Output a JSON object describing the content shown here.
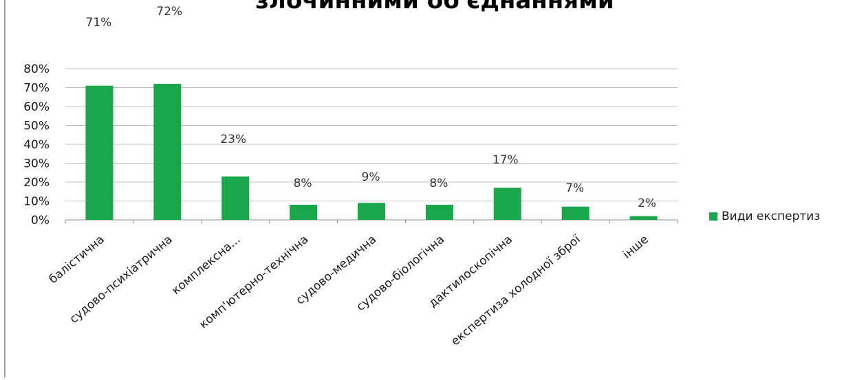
{
  "chart_data": {
    "type": "bar",
    "title": "злочинними об'єднаннями",
    "categories": [
      "балістична",
      "судово-психіатрична",
      "комплексна...",
      "комп'ютерно-технічна",
      "судово-медична",
      "судово-біологічна",
      "дактилоскопічна",
      "експертиза холодної зброї",
      "інше"
    ],
    "series": [
      {
        "name": "Види експертиз",
        "values": [
          71,
          72,
          23,
          8,
          9,
          8,
          17,
          7,
          2
        ],
        "color": "#1aa64a"
      }
    ],
    "data_labels": [
      "71%",
      "72%",
      "23%",
      "8%",
      "9%",
      "8%",
      "17%",
      "7%",
      "2%"
    ],
    "ylim": [
      0,
      80
    ],
    "ytick_step": 10,
    "y_tick_labels": [
      "0%",
      "10%",
      "20%",
      "30%",
      "40%",
      "50%",
      "60%",
      "70%",
      "80%"
    ],
    "grid": true,
    "legend_position": "right"
  }
}
